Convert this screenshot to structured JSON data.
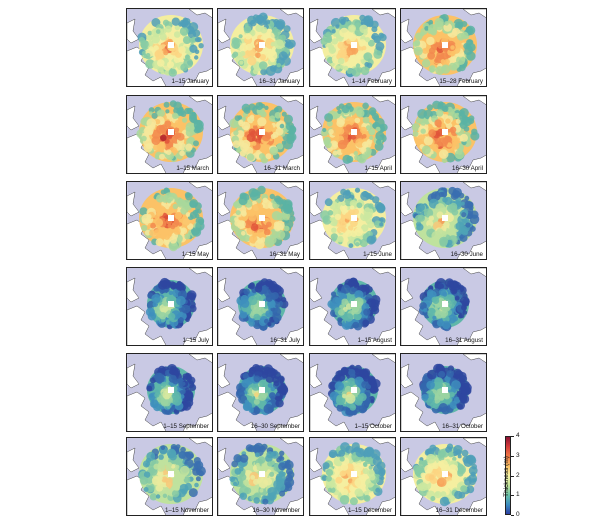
{
  "panels": [
    {
      "label": "1–15 January",
      "palette": "warm_mid"
    },
    {
      "label": "16–31 January",
      "palette": "warm_mid"
    },
    {
      "label": "1–14 February",
      "palette": "warm_mid"
    },
    {
      "label": "15–28 February",
      "palette": "warm_high"
    },
    {
      "label": "1–15 March",
      "palette": "warm_high"
    },
    {
      "label": "16–31 March",
      "palette": "warm_high"
    },
    {
      "label": "1–15 April",
      "palette": "warm_high"
    },
    {
      "label": "16–30 April",
      "palette": "warm_high"
    },
    {
      "label": "1–15 May",
      "palette": "warm_high"
    },
    {
      "label": "16–31 May",
      "palette": "warm_high"
    },
    {
      "label": "1–15 June",
      "palette": "warm_mid"
    },
    {
      "label": "16–30 June",
      "palette": "green_mid"
    },
    {
      "label": "1–15 July",
      "palette": "cool_low"
    },
    {
      "label": "16–31 July",
      "palette": "cool_low"
    },
    {
      "label": "1–15 August",
      "palette": "cool_low"
    },
    {
      "label": "16–31 August",
      "palette": "cool_low"
    },
    {
      "label": "1–15 September",
      "palette": "cool_low"
    },
    {
      "label": "16–30 September",
      "palette": "cool_low"
    },
    {
      "label": "1–15 October",
      "palette": "cool_low"
    },
    {
      "label": "16–31 October",
      "palette": "cool_low"
    },
    {
      "label": "1–15 November",
      "palette": "green_mid"
    },
    {
      "label": "16–30 November",
      "palette": "green_mid"
    },
    {
      "label": "1–15 December",
      "palette": "warm_mid"
    },
    {
      "label": "16–31 December",
      "palette": "warm_mid"
    }
  ],
  "colorbar": {
    "label": "Thickness (m)",
    "ticks": [
      "0",
      "1",
      "2",
      "3",
      "4"
    ],
    "range": [
      0,
      4
    ],
    "colors": {
      "low": "#2c3fa3",
      "mid": "#f7f4a5",
      "high": "#8a1234"
    }
  },
  "colors": {
    "ocean": "#c9c9e4",
    "land": "#ffffff"
  }
}
